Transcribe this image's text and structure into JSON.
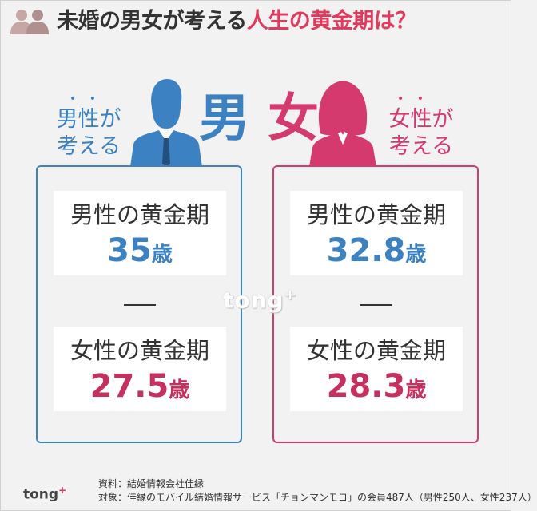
{
  "title": {
    "part1": "未婚の男女が考える",
    "part2": "人生の黄金期は？"
  },
  "male_side": {
    "dots": "• •",
    "label_line1": "男性が",
    "label_line2": "考える",
    "big_kanji": "男",
    "male_prime_label": "男性の黄金期",
    "male_prime_value": "35",
    "male_prime_unit": "歳",
    "female_prime_label": "女性の黄金期",
    "female_prime_value": "27.5",
    "female_prime_unit": "歳"
  },
  "female_side": {
    "dots": "• •",
    "label_line1": "女性が",
    "label_line2": "考える",
    "big_kanji": "女",
    "male_prime_label": "男性の黄金期",
    "male_prime_value": "32.8",
    "male_prime_unit": "歳",
    "female_prime_label": "女性の黄金期",
    "female_prime_value": "28.3",
    "female_prime_unit": "歳"
  },
  "watermark": {
    "text": "tong",
    "sup": "+"
  },
  "footer": {
    "logo_text": "tong",
    "logo_sup": "+",
    "source": "資料：結婚情報会社佳縁",
    "subject": "対象：佳縁のモバイル結婚情報サービス「チョンマンモヨ」の会員487人（男性250人、女性237人）"
  },
  "colors": {
    "male_blue": "#3c81c1",
    "female_pink": "#d43a6e",
    "value_pink": "#c5305f",
    "title_accent": "#e23a5c",
    "background": "#f2f2f2"
  },
  "icons": {
    "header": "two-people-icon",
    "male": "businessman-silhouette-icon",
    "female": "businesswoman-silhouette-icon"
  }
}
